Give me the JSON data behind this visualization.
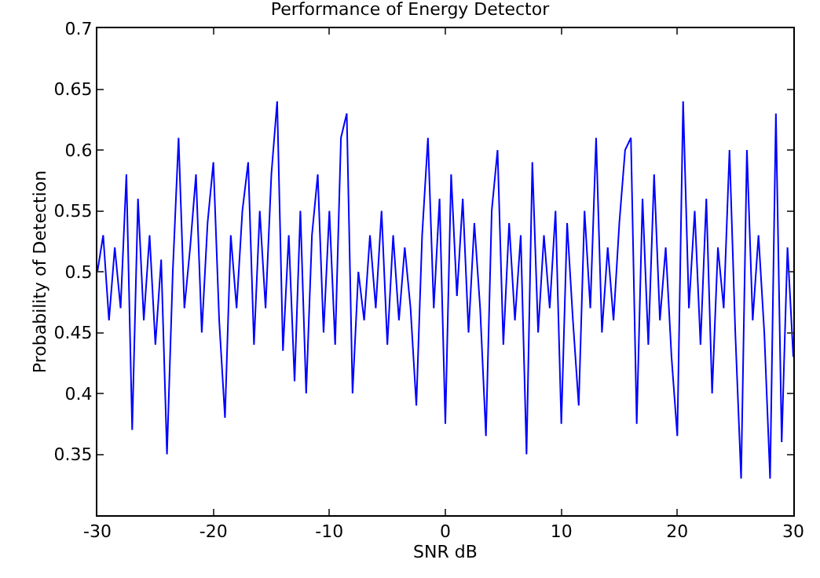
{
  "chart_data": {
    "type": "line",
    "title": "Performance of Energy Detector",
    "xlabel": "SNR dB",
    "ylabel": "Probability of Detection",
    "x": [
      -30,
      -29.5,
      -29,
      -28.5,
      -28,
      -27.5,
      -27,
      -26.5,
      -26,
      -25.5,
      -25,
      -24.5,
      -24,
      -23.5,
      -23,
      -22.5,
      -22,
      -21.5,
      -21,
      -20.5,
      -20,
      -19.5,
      -19,
      -18.5,
      -18,
      -17.5,
      -17,
      -16.5,
      -16,
      -15.5,
      -15,
      -14.5,
      -14,
      -13.5,
      -13,
      -12.5,
      -12,
      -11.5,
      -11,
      -10.5,
      -10,
      -9.5,
      -9,
      -8.5,
      -8,
      -7.5,
      -7,
      -6.5,
      -6,
      -5.5,
      -5,
      -4.5,
      -4,
      -3.5,
      -3,
      -2.5,
      -2,
      -1.5,
      -1,
      -0.5,
      0,
      0.5,
      1,
      1.5,
      2,
      2.5,
      3,
      3.5,
      4,
      4.5,
      5,
      5.5,
      6,
      6.5,
      7,
      7.5,
      8,
      8.5,
      9,
      9.5,
      10,
      10.5,
      11,
      11.5,
      12,
      12.5,
      13,
      13.5,
      14,
      14.5,
      15,
      15.5,
      16,
      16.5,
      17,
      17.5,
      18,
      18.5,
      19,
      19.5,
      20,
      20.5,
      21,
      21.5,
      22,
      22.5,
      23,
      23.5,
      24,
      24.5,
      25,
      25.5,
      26,
      26.5,
      27,
      27.5,
      28,
      28.5,
      29,
      29.5,
      30
    ],
    "series": [
      {
        "color": "#0000ff",
        "values": [
          0.5,
          0.53,
          0.46,
          0.52,
          0.47,
          0.58,
          0.37,
          0.56,
          0.46,
          0.53,
          0.44,
          0.51,
          0.35,
          0.5,
          0.61,
          0.47,
          0.52,
          0.58,
          0.45,
          0.54,
          0.59,
          0.46,
          0.38,
          0.53,
          0.47,
          0.55,
          0.59,
          0.44,
          0.55,
          0.47,
          0.58,
          0.64,
          0.435,
          0.53,
          0.41,
          0.55,
          0.4,
          0.53,
          0.58,
          0.45,
          0.55,
          0.44,
          0.61,
          0.63,
          0.4,
          0.5,
          0.46,
          0.53,
          0.47,
          0.55,
          0.44,
          0.53,
          0.46,
          0.52,
          0.47,
          0.39,
          0.53,
          0.61,
          0.47,
          0.56,
          0.375,
          0.58,
          0.48,
          0.56,
          0.45,
          0.54,
          0.47,
          0.365,
          0.55,
          0.6,
          0.44,
          0.54,
          0.46,
          0.53,
          0.35,
          0.59,
          0.45,
          0.53,
          0.47,
          0.55,
          0.375,
          0.54,
          0.46,
          0.39,
          0.55,
          0.47,
          0.61,
          0.45,
          0.52,
          0.46,
          0.54,
          0.6,
          0.61,
          0.375,
          0.56,
          0.44,
          0.58,
          0.46,
          0.52,
          0.43,
          0.365,
          0.64,
          0.47,
          0.55,
          0.44,
          0.56,
          0.4,
          0.52,
          0.47,
          0.6,
          0.45,
          0.33,
          0.6,
          0.46,
          0.53,
          0.45,
          0.33,
          0.63,
          0.36,
          0.52,
          0.43
        ]
      }
    ],
    "xlim": [
      -30,
      30
    ],
    "xticks": [
      -30,
      -20,
      -10,
      0,
      10,
      20,
      30
    ],
    "ylim": [
      0.3,
      0.7
    ],
    "yticks": [
      {
        "value": 0.3,
        "label": null
      },
      0.35,
      0.4,
      0.45,
      0.5,
      0.55,
      0.6,
      0.65,
      0.7
    ],
    "marker": "none",
    "line_style": "solid"
  }
}
